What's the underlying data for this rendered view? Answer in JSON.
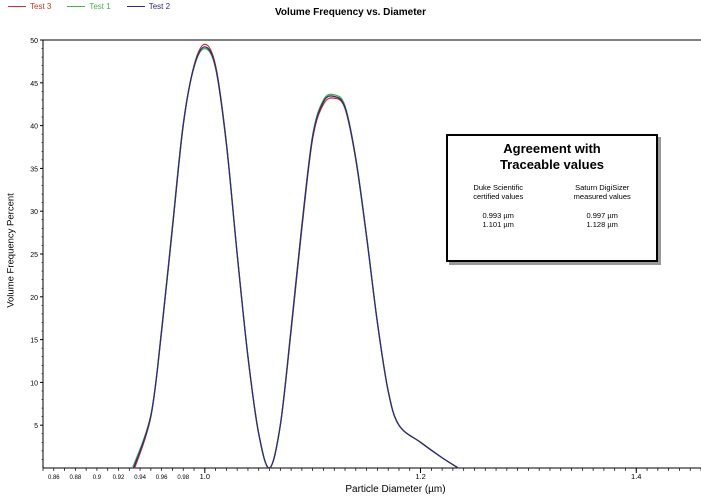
{
  "chart_data": {
    "type": "line",
    "title": "Volume Frequency vs. Diameter",
    "xlabel": "Particle Diameter (µm)",
    "ylabel": "Volume Frequency Percent",
    "xlim": [
      0.85,
      1.46
    ],
    "ylim": [
      0,
      50
    ],
    "x_ticks_major": [
      1.0,
      1.2,
      1.4
    ],
    "x_ticks_minor": [
      0.86,
      0.88,
      0.9,
      0.92,
      0.94,
      0.96,
      0.98
    ],
    "y_ticks": [
      5,
      10,
      15,
      20,
      25,
      30,
      35,
      40,
      45,
      50
    ],
    "grid": false,
    "legend_position": "top-left",
    "series": [
      {
        "name": "Test 3",
        "color": "#c0392b",
        "points": [
          [
            0.935,
            0
          ],
          [
            0.95,
            6
          ],
          [
            0.96,
            16
          ],
          [
            0.97,
            28
          ],
          [
            0.98,
            40
          ],
          [
            0.99,
            47
          ],
          [
            1.0,
            49.5
          ],
          [
            1.01,
            47
          ],
          [
            1.02,
            38
          ],
          [
            1.03,
            25
          ],
          [
            1.04,
            13
          ],
          [
            1.05,
            4
          ],
          [
            1.06,
            0
          ],
          [
            1.07,
            5
          ],
          [
            1.08,
            16
          ],
          [
            1.09,
            28
          ],
          [
            1.1,
            38.5
          ],
          [
            1.11,
            42.5
          ],
          [
            1.12,
            43.2
          ],
          [
            1.13,
            42
          ],
          [
            1.14,
            36
          ],
          [
            1.15,
            27
          ],
          [
            1.16,
            17
          ],
          [
            1.17,
            9
          ],
          [
            1.18,
            5
          ],
          [
            1.2,
            3
          ],
          [
            1.22,
            1.2
          ],
          [
            1.235,
            0
          ]
        ]
      },
      {
        "name": "Test 1",
        "color": "#4caf50",
        "points": [
          [
            0.933,
            0
          ],
          [
            0.95,
            6.2
          ],
          [
            0.96,
            16.2
          ],
          [
            0.97,
            28.3
          ],
          [
            0.98,
            40.2
          ],
          [
            0.99,
            46.8
          ],
          [
            1.0,
            49.0
          ],
          [
            1.01,
            46.7
          ],
          [
            1.02,
            37.8
          ],
          [
            1.03,
            25
          ],
          [
            1.04,
            13
          ],
          [
            1.05,
            4
          ],
          [
            1.06,
            0
          ],
          [
            1.07,
            5
          ],
          [
            1.08,
            16.3
          ],
          [
            1.09,
            28.4
          ],
          [
            1.1,
            38.9
          ],
          [
            1.11,
            43
          ],
          [
            1.12,
            43.6
          ],
          [
            1.13,
            42.3
          ],
          [
            1.14,
            36.2
          ],
          [
            1.15,
            27.1
          ],
          [
            1.16,
            17
          ],
          [
            1.17,
            9
          ],
          [
            1.18,
            5
          ],
          [
            1.2,
            3
          ],
          [
            1.22,
            1.2
          ],
          [
            1.235,
            0
          ]
        ]
      },
      {
        "name": "Test 2",
        "color": "#2c2c7a",
        "points": [
          [
            0.934,
            0
          ],
          [
            0.95,
            6.1
          ],
          [
            0.96,
            16.1
          ],
          [
            0.97,
            28.1
          ],
          [
            0.98,
            40.1
          ],
          [
            0.99,
            46.9
          ],
          [
            1.0,
            49.2
          ],
          [
            1.01,
            46.8
          ],
          [
            1.02,
            37.9
          ],
          [
            1.03,
            25
          ],
          [
            1.04,
            13
          ],
          [
            1.05,
            4
          ],
          [
            1.06,
            0
          ],
          [
            1.07,
            5
          ],
          [
            1.08,
            16.2
          ],
          [
            1.09,
            28.3
          ],
          [
            1.1,
            38.7
          ],
          [
            1.11,
            42.8
          ],
          [
            1.12,
            43.4
          ],
          [
            1.13,
            42.1
          ],
          [
            1.14,
            36.1
          ],
          [
            1.15,
            27
          ],
          [
            1.16,
            17
          ],
          [
            1.17,
            9
          ],
          [
            1.18,
            5
          ],
          [
            1.2,
            3
          ],
          [
            1.22,
            1.2
          ],
          [
            1.235,
            0
          ]
        ]
      }
    ]
  },
  "legend": [
    {
      "name": "Test 3",
      "color": "#c0392b"
    },
    {
      "name": "Test 1",
      "color": "#4caf50"
    },
    {
      "name": "Test 2",
      "color": "#2c2c7a"
    }
  ],
  "infobox": {
    "title_line1": "Agreement with",
    "title_line2": "Traceable values",
    "col1_head1": "Duke Scientific",
    "col1_head2": "certified values",
    "col1_val1": "0.993 µm",
    "col1_val2": "1.101 µm",
    "col2_head1": "Saturn DigiSizer",
    "col2_head2": "measured values",
    "col2_val1": "0.997 µm",
    "col2_val2": "1.128 µm"
  }
}
